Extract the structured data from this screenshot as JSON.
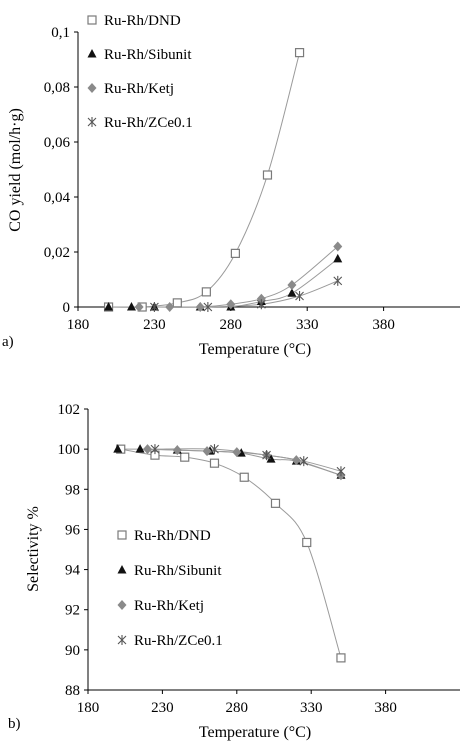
{
  "chart_data": [
    {
      "type": "scatter",
      "panel_label": "a)",
      "title": "",
      "xlabel": "Temperature (°C)",
      "ylabel": "CO yield (mol/h·g)",
      "xlim": [
        180,
        430
      ],
      "ylim": [
        0,
        0.1
      ],
      "xticks": [
        180,
        230,
        280,
        330,
        380
      ],
      "xtick_labels": [
        "180",
        "230",
        "280",
        "330",
        "380"
      ],
      "yticks": [
        0,
        0.02,
        0.04,
        0.06,
        0.08,
        0.1
      ],
      "ytick_labels": [
        "0",
        "0,02",
        "0,04",
        "0,06",
        "0,08",
        "0,1"
      ],
      "grid": false,
      "legend_position": "top-left",
      "series": [
        {
          "name": "Ru-Rh/DND",
          "marker": "open-square",
          "trendline": true,
          "x": [
            200,
            222,
            245,
            264,
            283,
            304,
            325
          ],
          "y": [
            0,
            0,
            0.0015,
            0.0055,
            0.0195,
            0.048,
            0.0925
          ]
        },
        {
          "name": "Ru-Rh/Sibunit",
          "marker": "filled-triangle",
          "trendline": true,
          "x": [
            200,
            215,
            230,
            260,
            280,
            300,
            320,
            350
          ],
          "y": [
            0,
            0,
            0,
            0,
            0,
            0.002,
            0.005,
            0.0175
          ]
        },
        {
          "name": "Ru-Rh/Ketj",
          "marker": "filled-diamond",
          "trendline": true,
          "x": [
            220,
            240,
            260,
            280,
            300,
            320,
            350
          ],
          "y": [
            0,
            0,
            0,
            0.001,
            0.003,
            0.008,
            0.022
          ]
        },
        {
          "name": "Ru-Rh/ZCe0.1",
          "marker": "star",
          "trendline": true,
          "x": [
            230,
            265,
            300,
            325,
            350
          ],
          "y": [
            0,
            0,
            0.001,
            0.004,
            0.0095
          ]
        }
      ]
    },
    {
      "type": "scatter",
      "panel_label": "b)",
      "title": "",
      "xlabel": "Temperature (°C)",
      "ylabel": "Selectivity %",
      "xlim": [
        180,
        430
      ],
      "ylim": [
        88,
        102
      ],
      "xticks": [
        180,
        230,
        280,
        330,
        380
      ],
      "xtick_labels": [
        "180",
        "230",
        "280",
        "330",
        "380"
      ],
      "yticks": [
        88,
        90,
        92,
        94,
        96,
        98,
        100,
        102
      ],
      "ytick_labels": [
        "88",
        "90",
        "92",
        "94",
        "96",
        "98",
        "100",
        "102"
      ],
      "grid": false,
      "legend_position": "bottom-left",
      "series": [
        {
          "name": "Ru-Rh/DND",
          "marker": "open-square",
          "trendline": true,
          "x": [
            202,
            225,
            245,
            265,
            285,
            306,
            327,
            350
          ],
          "y": [
            100,
            99.7,
            99.6,
            99.3,
            98.6,
            97.3,
            95.35,
            89.6
          ]
        },
        {
          "name": "Ru-Rh/Sibunit",
          "marker": "filled-triangle",
          "trendline": true,
          "x": [
            200,
            215,
            240,
            262,
            283,
            303,
            320,
            350
          ],
          "y": [
            100,
            100,
            99.95,
            99.9,
            99.8,
            99.5,
            99.4,
            98.7
          ]
        },
        {
          "name": "Ru-Rh/Ketj",
          "marker": "filled-diamond",
          "trendline": true,
          "x": [
            220,
            240,
            260,
            280,
            300,
            320,
            350
          ],
          "y": [
            100,
            99.95,
            99.9,
            99.85,
            99.7,
            99.45,
            98.7
          ]
        },
        {
          "name": "Ru-Rh/ZCe0.1",
          "marker": "star",
          "trendline": true,
          "x": [
            225,
            265,
            300,
            325,
            350
          ],
          "y": [
            100,
            100,
            99.7,
            99.4,
            98.9
          ]
        }
      ]
    }
  ]
}
